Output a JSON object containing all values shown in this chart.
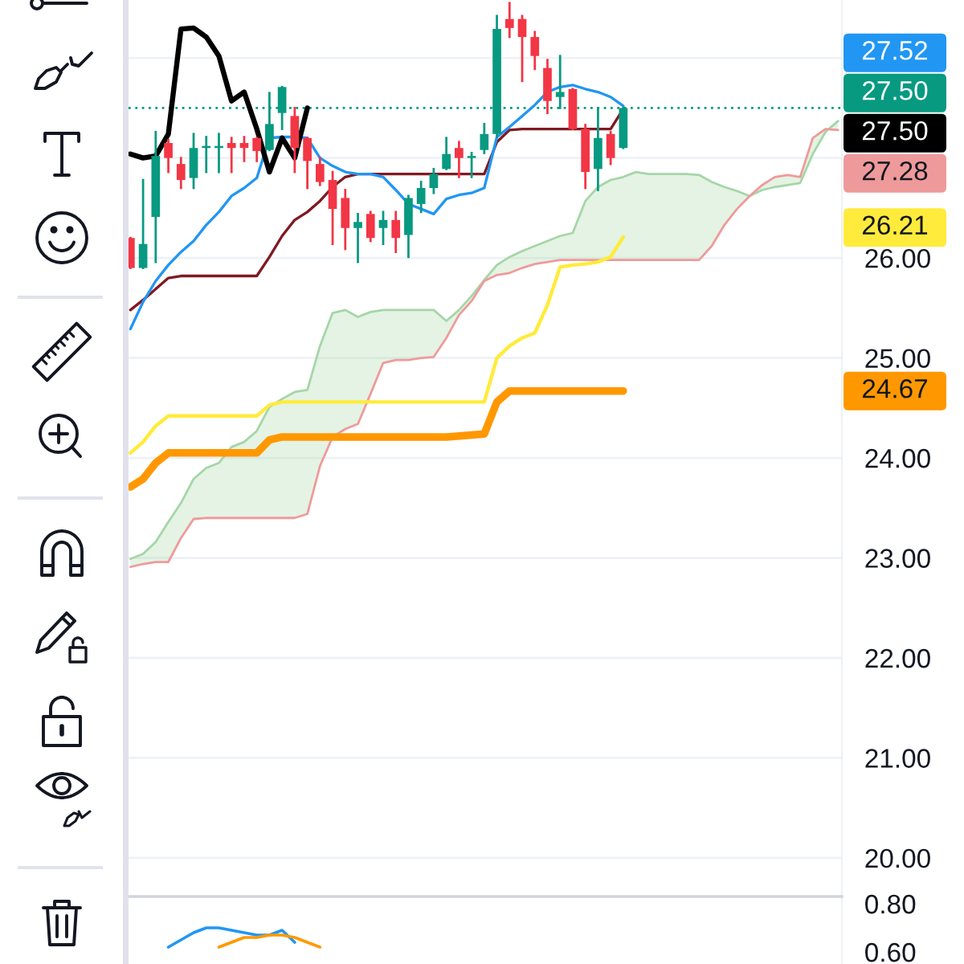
{
  "chart_data": [
    {
      "type": "candlestick",
      "categories": [
        null,
        null,
        null,
        null,
        null,
        null,
        null,
        null,
        null,
        null,
        null,
        null,
        null,
        null,
        null,
        null,
        null,
        null,
        null,
        null,
        null,
        null,
        null,
        null,
        null,
        null,
        null,
        null,
        null,
        null,
        null,
        null,
        null,
        null,
        null,
        null,
        null,
        null,
        null,
        null,
        null,
        null,
        null,
        null,
        null,
        null,
        null,
        null,
        null,
        null,
        null,
        null,
        null,
        null,
        null,
        null,
        null
      ],
      "ohlc": [
        [
          26.2,
          26.2,
          25.9,
          25.9
        ],
        [
          25.9,
          26.78,
          25.9,
          26.14
        ],
        [
          26.41,
          27.26,
          25.96,
          27.02
        ],
        [
          27.15,
          27.18,
          26.86,
          27.0
        ],
        [
          26.94,
          27.0,
          26.7,
          26.78
        ],
        [
          26.8,
          27.24,
          26.7,
          27.1
        ],
        [
          27.1,
          27.21,
          26.86,
          27.12
        ],
        [
          27.1,
          27.24,
          26.86,
          27.12
        ],
        [
          27.15,
          27.2,
          26.86,
          27.1
        ],
        [
          27.15,
          27.21,
          26.97,
          27.1
        ],
        [
          27.2,
          27.2,
          26.97,
          27.07
        ],
        [
          27.08,
          27.65,
          27.08,
          27.34
        ],
        [
          27.45,
          27.71,
          27.29,
          27.71
        ],
        [
          27.42,
          27.5,
          26.86,
          27.1
        ],
        [
          27.2,
          27.2,
          26.7,
          26.97
        ],
        [
          26.94,
          27.0,
          26.73,
          26.76
        ],
        [
          26.78,
          26.86,
          26.14,
          26.49
        ],
        [
          26.6,
          26.68,
          26.09,
          26.3
        ],
        [
          26.3,
          26.44,
          25.96,
          26.36
        ],
        [
          26.44,
          26.46,
          26.17,
          26.2
        ],
        [
          26.3,
          26.46,
          26.14,
          26.38
        ],
        [
          26.38,
          26.46,
          26.06,
          26.2
        ],
        [
          26.23,
          26.62,
          26.01,
          26.6
        ],
        [
          26.54,
          26.76,
          26.46,
          26.7
        ],
        [
          26.7,
          26.89,
          26.65,
          26.84
        ],
        [
          26.89,
          27.2,
          26.89,
          27.04
        ],
        [
          27.1,
          27.16,
          26.81,
          27.0
        ],
        [
          27.0,
          27.05,
          26.81,
          27.02
        ],
        [
          27.08,
          27.34,
          27.05,
          27.24
        ],
        [
          27.24,
          28.42,
          27.21,
          28.29
        ],
        [
          28.39,
          28.55,
          28.21,
          28.3
        ],
        [
          28.39,
          28.42,
          27.77,
          28.21
        ],
        [
          28.21,
          28.26,
          27.89,
          28.02
        ],
        [
          27.9,
          27.98,
          27.45,
          27.57
        ],
        [
          27.61,
          28.02,
          27.5,
          27.66
        ],
        [
          27.69,
          27.69,
          27.29,
          27.29
        ],
        [
          27.29,
          27.33,
          26.7,
          26.86
        ],
        [
          26.89,
          27.5,
          26.68,
          27.2
        ],
        [
          27.24,
          27.26,
          26.94,
          27.0
        ],
        [
          27.1,
          27.5,
          27.1,
          27.5
        ],
        null,
        null,
        null,
        null,
        null,
        null,
        null,
        null,
        null,
        null,
        null,
        null,
        null,
        null,
        null,
        null,
        null
      ],
      "colors": [
        "#f23645",
        "#089981",
        "#089981",
        "#f23645",
        "#f23645",
        "#089981",
        "#089981",
        "#089981",
        "#f23645",
        "#f23645",
        "#f23645",
        "#089981",
        "#089981",
        "#f23645",
        "#f23645",
        "#f23645",
        "#f23645",
        "#f23645",
        "#089981",
        "#f23645",
        "#089981",
        "#f23645",
        "#089981",
        "#089981",
        "#089981",
        "#089981",
        "#f23645",
        "#089981",
        "#089981",
        "#089981",
        "#f23645",
        "#f23645",
        "#f23645",
        "#f23645",
        "#089981",
        "#f23645",
        "#f23645",
        "#089981",
        "#f23645",
        "#089981",
        null,
        null,
        null,
        null,
        null,
        null,
        null,
        null,
        null,
        null,
        null,
        null,
        null,
        null,
        null,
        null,
        null
      ],
      "series": [
        {
          "type": "line",
          "color": "#a5d6a7",
          "values": [
            22.99,
            23.04,
            23.16,
            23.36,
            23.55,
            23.79,
            23.9,
            23.95,
            24.11,
            24.16,
            24.27,
            24.51,
            24.59,
            24.66,
            24.68,
            25.12,
            25.45,
            25.48,
            25.41,
            25.46,
            25.48,
            25.48,
            25.48,
            25.48,
            25.48,
            25.37,
            25.48,
            25.62,
            25.78,
            25.93,
            26.01,
            26.07,
            26.12,
            26.17,
            26.22,
            26.25,
            26.57,
            26.71,
            26.78,
            26.81,
            26.86,
            26.84,
            26.84,
            26.84,
            26.84,
            26.83,
            26.76,
            26.71,
            26.67,
            26.62,
            26.68,
            26.71,
            26.73,
            26.75,
            27.04,
            27.26,
            27.37
          ],
          "lower": [
            22.91,
            22.94,
            22.96,
            22.96,
            23.2,
            23.39,
            23.4,
            23.4,
            23.4,
            23.4,
            23.4,
            23.4,
            23.4,
            23.4,
            23.44,
            23.92,
            24.21,
            24.29,
            24.34,
            24.64,
            24.95,
            24.98,
            24.98,
            25.0,
            25.01,
            25.2,
            25.43,
            25.57,
            25.77,
            25.83,
            25.85,
            25.9,
            25.94,
            25.96,
            25.98,
            25.98,
            25.98,
            25.98,
            25.98,
            25.98,
            25.98,
            25.98,
            25.98,
            25.98,
            25.98,
            25.98,
            26.12,
            26.33,
            26.49,
            26.62,
            26.73,
            26.81,
            26.83,
            26.81,
            27.2,
            27.29,
            27.28
          ],
          "upper": [
            22.99,
            23.04,
            23.16,
            23.36,
            23.55,
            23.79,
            23.9,
            23.95,
            24.11,
            24.16,
            24.27,
            24.51,
            24.59,
            24.66,
            24.68,
            25.12,
            25.45,
            25.48,
            25.41,
            25.46,
            25.48,
            25.48,
            25.48,
            25.48,
            25.48,
            25.37,
            25.48,
            25.62,
            25.78,
            25.93,
            26.01,
            26.07,
            26.12,
            26.17,
            26.22,
            26.25,
            26.57,
            26.71,
            26.78,
            26.81,
            26.86,
            26.84,
            26.84,
            26.84,
            26.84,
            26.83,
            26.76,
            26.71,
            26.67,
            26.62,
            26.68,
            26.71,
            26.73,
            26.75,
            27.04,
            27.26,
            27.37
          ]
        },
        {
          "type": "line",
          "color": "#ef9a9a",
          "values": [
            22.91,
            22.94,
            22.96,
            22.96,
            23.2,
            23.39,
            23.4,
            23.4,
            23.4,
            23.4,
            23.4,
            23.4,
            23.4,
            23.4,
            23.44,
            23.92,
            24.21,
            24.29,
            24.34,
            24.64,
            24.95,
            24.98,
            24.98,
            25.0,
            25.01,
            25.2,
            25.43,
            25.57,
            25.77,
            25.83,
            25.85,
            25.9,
            25.94,
            25.96,
            25.98,
            25.98,
            25.98,
            25.98,
            25.98,
            25.98,
            25.98,
            25.98,
            25.98,
            25.98,
            25.98,
            25.98,
            26.12,
            26.33,
            26.49,
            26.62,
            26.73,
            26.81,
            26.83,
            26.81,
            27.2,
            27.29,
            27.28
          ],
          "value_labels": [
            null,
            null,
            null,
            null,
            null,
            null,
            null,
            null,
            null,
            null,
            null,
            null,
            null,
            null,
            null,
            null,
            null,
            null,
            null,
            null,
            null,
            null,
            null,
            null,
            null,
            null,
            null,
            null,
            null,
            null,
            null,
            null,
            null,
            null,
            null,
            null,
            null,
            null,
            null,
            null,
            null,
            null,
            null,
            null,
            null,
            null,
            null,
            null,
            null,
            null,
            null,
            null,
            null,
            null,
            null,
            null,
            "27.28"
          ]
        },
        {
          "type": "line",
          "color": "#ff9800",
          "values": [
            23.71,
            23.79,
            23.95,
            24.05,
            24.05,
            24.05,
            24.05,
            24.05,
            24.05,
            24.05,
            24.05,
            24.18,
            24.21,
            24.21,
            24.21,
            24.21,
            24.21,
            24.21,
            24.21,
            24.21,
            24.21,
            24.21,
            24.21,
            24.21,
            24.21,
            24.21,
            24.22,
            24.23,
            24.24,
            24.56,
            24.67,
            24.67,
            24.67,
            24.67,
            24.67,
            24.67,
            24.67,
            24.67,
            24.67,
            24.67,
            null,
            null,
            null,
            null,
            null,
            null,
            null,
            null,
            null,
            null,
            null,
            null,
            null,
            null,
            null,
            null,
            null
          ]
        },
        {
          "type": "line",
          "color": "#ffeb3b",
          "values": [
            24.05,
            24.16,
            24.32,
            24.42,
            24.42,
            24.42,
            24.42,
            24.42,
            24.42,
            24.42,
            24.42,
            24.53,
            24.56,
            24.56,
            24.56,
            24.56,
            24.56,
            24.56,
            24.56,
            24.56,
            24.56,
            24.56,
            24.56,
            24.56,
            24.56,
            24.56,
            24.56,
            24.56,
            24.56,
            25.0,
            25.12,
            25.2,
            25.25,
            25.53,
            25.91,
            25.93,
            25.94,
            25.96,
            26.01,
            26.21,
            null,
            null,
            null,
            null,
            null,
            null,
            null,
            null,
            null,
            null,
            null,
            null,
            null,
            null,
            null,
            null,
            null
          ]
        },
        {
          "type": "line",
          "color": "#801922",
          "values": [
            25.48,
            25.58,
            25.69,
            25.8,
            25.82,
            25.82,
            25.82,
            25.82,
            25.82,
            25.82,
            25.82,
            26.01,
            26.22,
            26.38,
            26.46,
            26.57,
            26.71,
            26.81,
            26.84,
            26.84,
            26.84,
            26.84,
            26.84,
            26.84,
            26.84,
            26.84,
            26.84,
            26.84,
            26.84,
            27.16,
            27.28,
            27.29,
            27.29,
            27.29,
            27.29,
            27.29,
            27.29,
            27.29,
            27.29,
            27.49,
            null,
            null,
            null,
            null,
            null,
            null,
            null,
            null,
            null,
            null,
            null,
            null,
            null,
            null,
            null,
            null,
            null
          ]
        },
        {
          "type": "line",
          "color": "#2196f3",
          "values": [
            25.29,
            25.56,
            25.77,
            25.93,
            26.06,
            26.17,
            26.33,
            26.46,
            26.62,
            26.7,
            26.8,
            27.2,
            27.21,
            27.21,
            27.2,
            27.0,
            26.92,
            26.86,
            26.84,
            26.84,
            26.81,
            26.68,
            26.54,
            26.49,
            26.44,
            26.59,
            26.63,
            26.65,
            26.7,
            27.21,
            27.31,
            27.42,
            27.53,
            27.66,
            27.71,
            27.73,
            27.69,
            27.66,
            27.61,
            27.52,
            null,
            null,
            null,
            null,
            null,
            null,
            null,
            null,
            null,
            null,
            null,
            null,
            null,
            null,
            null,
            null,
            null
          ]
        },
        {
          "type": "line",
          "color": "#000000",
          "values": [
            27.04,
            27.0,
            27.02,
            27.24,
            28.29,
            28.3,
            28.21,
            28.02,
            27.57,
            27.66,
            27.29,
            26.86,
            27.2,
            27.0,
            27.5,
            null,
            null,
            null,
            null,
            null,
            null,
            null,
            null,
            null,
            null,
            null,
            null,
            null,
            null,
            null,
            null,
            null,
            null,
            null,
            null,
            null,
            null,
            null,
            null,
            null,
            null,
            null,
            null,
            null,
            null,
            null,
            null,
            null,
            null,
            null,
            null,
            null,
            null,
            null,
            null,
            null,
            null
          ]
        }
      ],
      "annotations": [
        "27.52",
        "27.50",
        "26.21",
        "24.67"
      ],
      "ylim": [
        19.63,
        28.58
      ],
      "yticks": [
        {
          "value": 20,
          "label": "20.00"
        },
        {
          "value": 21,
          "label": "21.00"
        },
        {
          "value": 22,
          "label": "22.00"
        },
        {
          "value": 23,
          "label": "23.00"
        },
        {
          "value": 24,
          "label": "24.00"
        },
        {
          "value": 25,
          "label": "25.00"
        },
        {
          "value": 26,
          "label": "26.00"
        },
        {
          "value": 27,
          "label": null
        },
        {
          "value": 28,
          "label": null
        }
      ],
      "grid": "y",
      "tick_labels": "y",
      "ref_lines": [
        {
          "axis": "y",
          "value": 27.5,
          "label": "27.50",
          "color": "#089981",
          "line_style": "dotted"
        }
      ]
    },
    {
      "type": "line",
      "categories": [
        null,
        null,
        null,
        null,
        null,
        null,
        null,
        null,
        null,
        null,
        null,
        null,
        null,
        null,
        null,
        null,
        null,
        null,
        null,
        null,
        null,
        null,
        null,
        null,
        null,
        null,
        null,
        null,
        null,
        null,
        null,
        null,
        null,
        null,
        null,
        null,
        null,
        null,
        null,
        null,
        null,
        null,
        null,
        null,
        null,
        null,
        null,
        null,
        null,
        null,
        null,
        null,
        null,
        null,
        null,
        null,
        null
      ],
      "series": [
        {
          "color": "#2196f3",
          "values": [
            null,
            null,
            null,
            0.62,
            0.65,
            0.68,
            0.7,
            0.7,
            0.69,
            0.68,
            0.67,
            0.67,
            0.69,
            0.64,
            null,
            null,
            null,
            null,
            null,
            null,
            null,
            null,
            null,
            null,
            null,
            null,
            null,
            null,
            null,
            null,
            null,
            null,
            null,
            null,
            null,
            null,
            null,
            null,
            null,
            null,
            null,
            null,
            null,
            null,
            null,
            null,
            null,
            null,
            null,
            null,
            null,
            null,
            null,
            null,
            null,
            null,
            null
          ]
        },
        {
          "color": "#ff9800",
          "values": [
            null,
            null,
            null,
            null,
            null,
            null,
            null,
            0.62,
            0.64,
            0.66,
            0.66,
            0.67,
            0.67,
            0.66,
            0.64,
            0.62,
            null,
            null,
            null,
            null,
            null,
            null,
            null,
            null,
            null,
            null,
            null,
            null,
            null,
            null,
            null,
            null,
            null,
            null,
            null,
            null,
            null,
            null,
            null,
            null,
            null,
            null,
            null,
            null,
            null,
            null,
            null,
            null,
            null,
            null,
            null,
            null,
            null,
            null,
            null,
            null,
            null
          ]
        }
      ],
      "ylim": [
        0.55,
        0.83
      ],
      "yticks": [
        {
          "value": 0.6,
          "label": "0.60"
        },
        {
          "value": 0.8,
          "label": "0.80"
        }
      ],
      "tick_labels": "y"
    }
  ]
}
